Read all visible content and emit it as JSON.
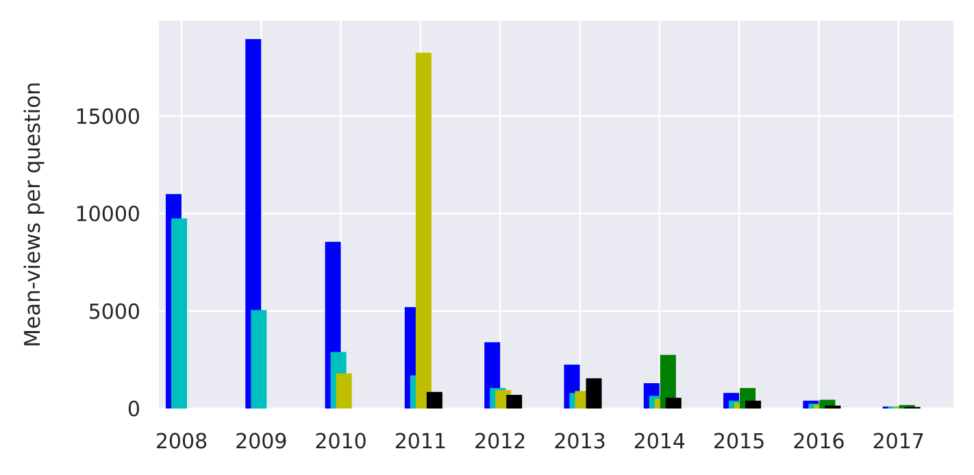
{
  "chart_data": {
    "type": "bar",
    "title": "",
    "xlabel": "",
    "ylabel": "Mean-views per question",
    "categories": [
      "2008",
      "2009",
      "2010",
      "2011",
      "2012",
      "2013",
      "2014",
      "2015",
      "2016",
      "2017"
    ],
    "yticks": [
      0,
      5000,
      10000,
      15000
    ],
    "ylim": [
      0,
      19900
    ],
    "grid": true,
    "legend": "none",
    "series": [
      {
        "color": "#0000ff",
        "values": [
          11000,
          18950,
          8550,
          5200,
          3400,
          2250,
          1300,
          800,
          400,
          100
        ]
      },
      {
        "color": "#00bfbf",
        "values": [
          9750,
          5050,
          2900,
          1700,
          1050,
          800,
          650,
          400,
          250,
          100
        ]
      },
      {
        "color": "#bfbf00",
        "values": [
          null,
          null,
          1800,
          18250,
          950,
          900,
          500,
          300,
          200,
          80
        ]
      },
      {
        "color": "#008000",
        "values": [
          null,
          null,
          null,
          null,
          null,
          null,
          2750,
          1050,
          450,
          180
        ]
      },
      {
        "color": "#000000",
        "values": [
          null,
          null,
          null,
          850,
          700,
          1550,
          550,
          400,
          150,
          80
        ]
      }
    ],
    "style": {
      "background": "#eaeaf2",
      "grid_color": "#ffffff",
      "text_color": "#262626"
    }
  }
}
